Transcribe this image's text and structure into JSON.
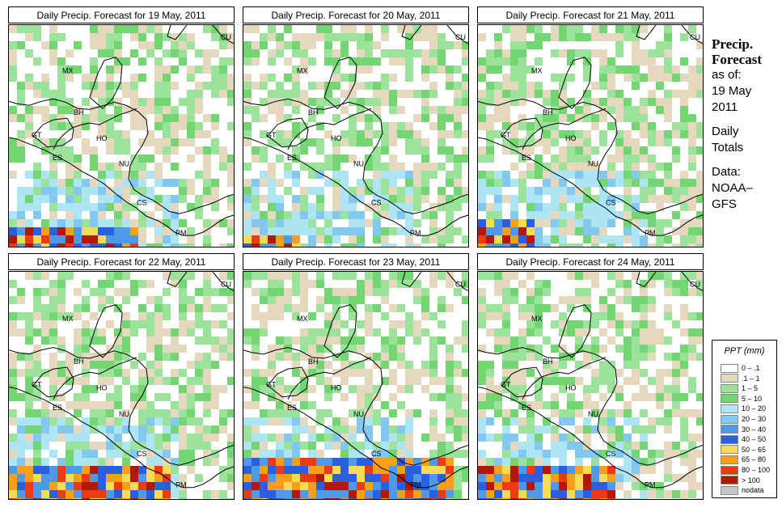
{
  "panels": [
    {
      "title": "Daily Precip. Forecast for  19 May, 2011",
      "seed": 19,
      "heavy": "southwest-strip"
    },
    {
      "title": "Daily Precip. Forecast for  20 May, 2011",
      "seed": 20,
      "heavy": "southwest-corner"
    },
    {
      "title": "Daily Precip. Forecast for  21 May, 2011",
      "seed": 21,
      "heavy": "southwest-blob"
    },
    {
      "title": "Daily Precip. Forecast for  22 May, 2011",
      "seed": 22,
      "heavy": "southwest-band"
    },
    {
      "title": "Daily Precip. Forecast for  23 May, 2011",
      "seed": 23,
      "heavy": "south-band"
    },
    {
      "title": "Daily Precip. Forecast for  24 May, 2011",
      "seed": 24,
      "heavy": "south-center"
    }
  ],
  "country_labels": [
    "MX",
    "BH",
    "GT",
    "HO",
    "ES",
    "NU",
    "CS",
    "PM",
    "CU"
  ],
  "side": {
    "heading_line1": "Precip.",
    "heading_line2": "Forecast",
    "asof": "as of:",
    "date_line1": "19 May",
    "date_line2": "2011",
    "daily_line1": "Daily",
    "daily_line2": "Totals",
    "data_line1": "Data:",
    "data_line2": "NOAA–",
    "data_line3": "GFS"
  },
  "legend": {
    "title": "PPT (mm)",
    "items": [
      {
        "label": "0 – .1",
        "color": "#ffffff"
      },
      {
        "label": ".1 – 1",
        "color": "#e6d7bf"
      },
      {
        "label": "1 – 5",
        "color": "#9be39b"
      },
      {
        "label": "5 – 10",
        "color": "#73d673"
      },
      {
        "label": "10 – 20",
        "color": "#aee5f5"
      },
      {
        "label": "20 – 30",
        "color": "#82c8ef"
      },
      {
        "label": "30 – 40",
        "color": "#4f9ae8"
      },
      {
        "label": "40 – 50",
        "color": "#2a5fe0"
      },
      {
        "label": "50 – 65",
        "color": "#f5dc55"
      },
      {
        "label": "65 – 80",
        "color": "#f5a018"
      },
      {
        "label": "80 – 100",
        "color": "#ee3a12"
      },
      {
        "label": "> 100",
        "color": "#b01808"
      },
      {
        "label": "nodata",
        "color": "#c8c8c8"
      }
    ]
  }
}
